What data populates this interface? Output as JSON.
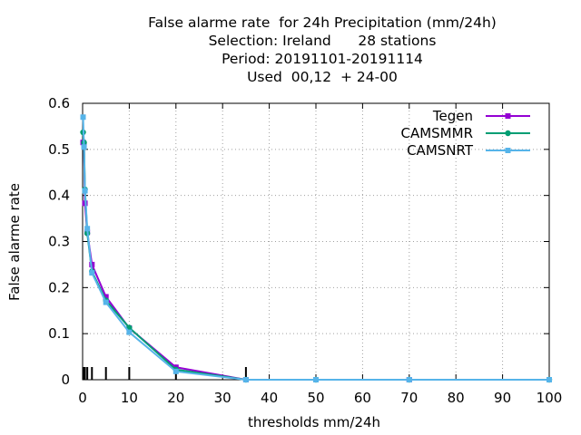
{
  "chart_data": {
    "type": "line",
    "title_lines": [
      "False alarme rate  for 24h Precipitation (mm/24h)",
      "Selection: Ireland      28 stations",
      "Period: 20191101-20191114",
      "Used  00,12  + 24-00"
    ],
    "xlabel": "thresholds mm/24h",
    "ylabel": "False alarme rate",
    "xlim": [
      0,
      100
    ],
    "ylim": [
      0,
      0.6
    ],
    "xticks": [
      0,
      10,
      20,
      30,
      40,
      50,
      60,
      70,
      80,
      90,
      100
    ],
    "xtick_labels": [
      "0",
      "10",
      "20",
      "30",
      "40",
      "50",
      "60",
      "70",
      "80",
      "90",
      "100"
    ],
    "yticks": [
      0,
      0.1,
      0.2,
      0.3,
      0.4,
      0.5,
      0.6
    ],
    "ytick_labels": [
      "0",
      "0.1",
      "0.2",
      "0.3",
      "0.4",
      "0.5",
      "0.6"
    ],
    "grid": true,
    "legend_position": "top-right",
    "threshold_markers": [
      0.1,
      0.3,
      0.5,
      1,
      2,
      5,
      10,
      20,
      35
    ],
    "series": [
      {
        "name": "Tegen",
        "color": "#9400d3",
        "x": [
          0.1,
          0.3,
          0.5,
          1,
          2,
          5,
          10,
          20,
          35,
          50,
          70,
          100
        ],
        "y": [
          0.515,
          0.51,
          0.383,
          0.32,
          0.25,
          0.18,
          0.112,
          0.027,
          0.0,
          0.0,
          0.0,
          0.0
        ]
      },
      {
        "name": "CAMSMMR",
        "color": "#009e73",
        "x": [
          0.1,
          0.3,
          0.5,
          1,
          2,
          5,
          10,
          20,
          35,
          50,
          70,
          100
        ],
        "y": [
          0.537,
          0.515,
          0.413,
          0.318,
          0.235,
          0.172,
          0.113,
          0.022,
          0.0,
          0.0,
          0.0,
          0.0
        ]
      },
      {
        "name": "CAMSNRT",
        "color": "#56b4e9",
        "x": [
          0.1,
          0.3,
          0.5,
          1,
          2,
          5,
          10,
          20,
          35,
          50,
          70,
          100
        ],
        "y": [
          0.57,
          0.505,
          0.41,
          0.328,
          0.232,
          0.168,
          0.103,
          0.018,
          0.0,
          0.0,
          0.0,
          0.0
        ]
      }
    ]
  }
}
